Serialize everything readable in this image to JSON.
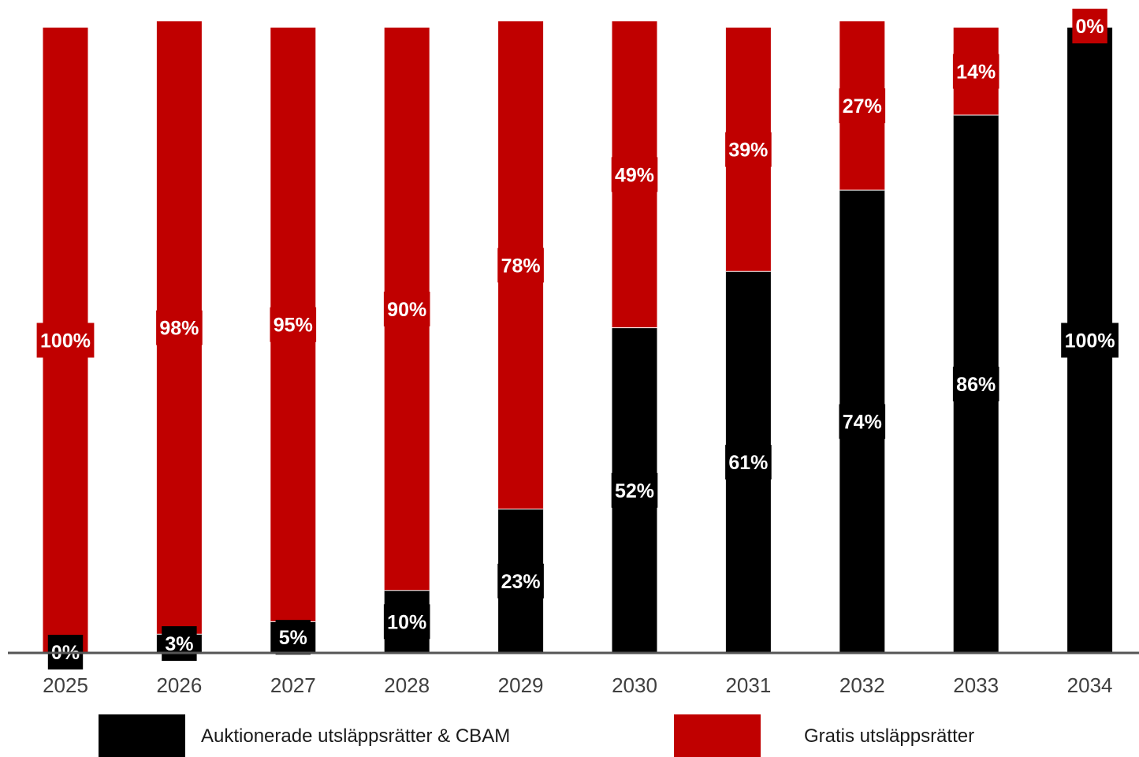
{
  "chart_data": {
    "type": "bar",
    "stacked": true,
    "categories": [
      "2025",
      "2026",
      "2027",
      "2028",
      "2029",
      "2030",
      "2031",
      "2032",
      "2033",
      "2034"
    ],
    "series": [
      {
        "name": "Auktionerade utsläppsrätter & CBAM",
        "color": "#000000",
        "values": [
          0,
          3,
          5,
          10,
          23,
          52,
          61,
          74,
          86,
          100
        ],
        "labels": [
          "0%",
          "3%",
          "5%",
          "10%",
          "23%",
          "52%",
          "61%",
          "74%",
          "86%",
          "100%"
        ]
      },
      {
        "name": "Gratis utsläppsrätter",
        "color": "#c00000",
        "values": [
          100,
          98,
          95,
          90,
          78,
          49,
          39,
          27,
          14,
          0
        ],
        "labels": [
          "100%",
          "98%",
          "95%",
          "90%",
          "78%",
          "49%",
          "39%",
          "27%",
          "14%",
          "0%"
        ]
      }
    ],
    "ylim": [
      0,
      100
    ],
    "grid": false,
    "legend": "bottom"
  },
  "legend": {
    "items": [
      {
        "label": "Auktionerade utsläppsrätter & CBAM",
        "color": "#000000"
      },
      {
        "label": "Gratis utsläppsrätter",
        "color": "#c00000"
      }
    ]
  }
}
